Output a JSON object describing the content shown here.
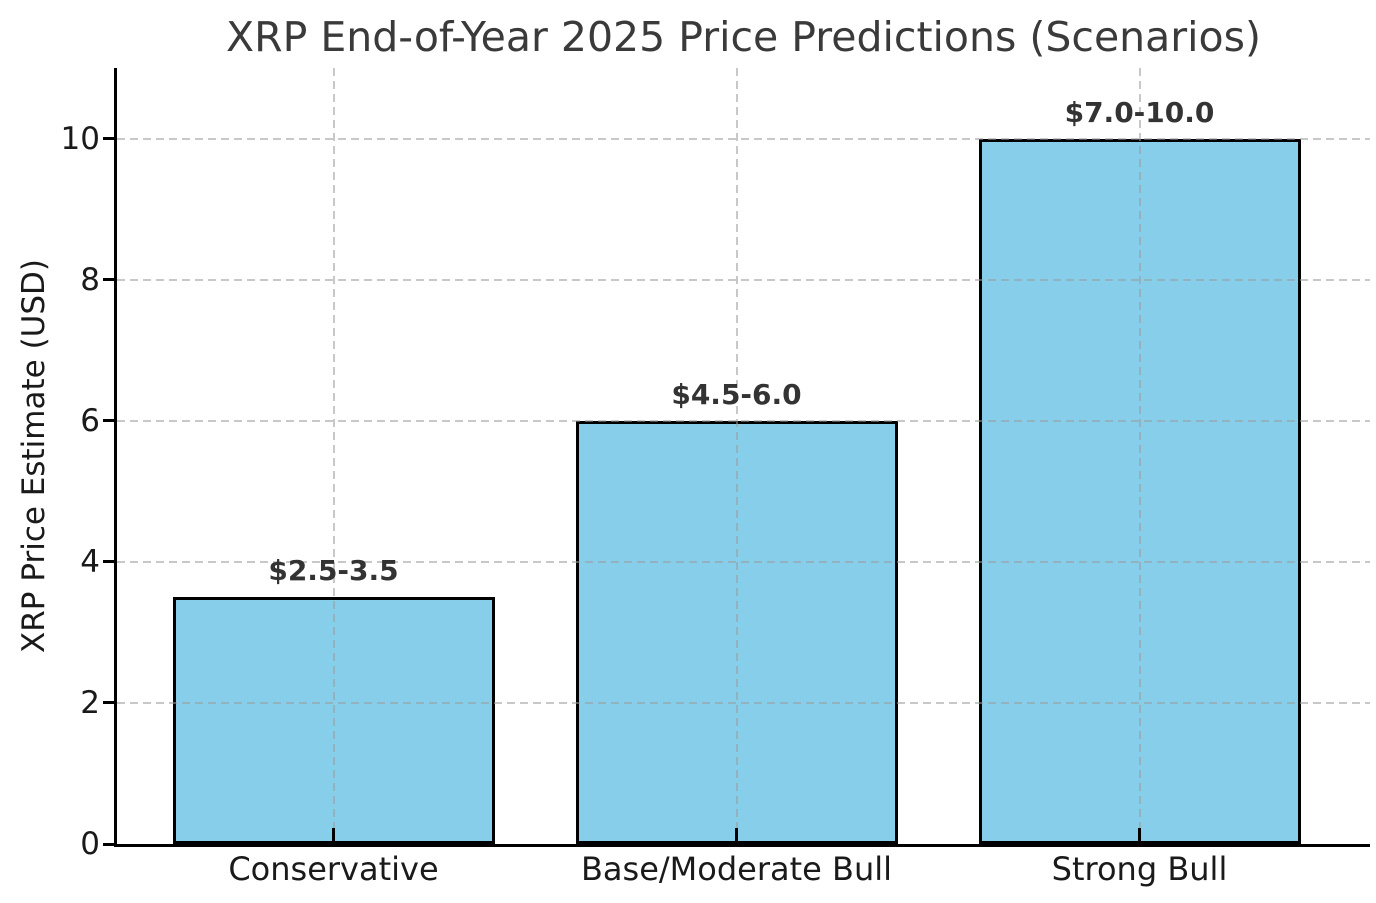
{
  "figure": {
    "background": "#ffffff"
  },
  "chart_data": {
    "type": "bar",
    "title": "XRP End-of-Year 2025 Price Predictions (Scenarios)",
    "xlabel": "",
    "ylabel": "XRP Price Estimate (USD)",
    "categories": [
      "Conservative",
      "Base/Moderate Bull",
      "Strong Bull"
    ],
    "values": [
      3.5,
      6.0,
      10.0
    ],
    "bar_labels": [
      "$2.5-3.5",
      "$4.5-6.0",
      "$7.0-10.0"
    ],
    "yticks": [
      0,
      2,
      4,
      6,
      8,
      10
    ],
    "ylim": [
      0,
      11
    ],
    "grid": true,
    "grid_axes": "both",
    "grid_linestyle": "dashed",
    "legend_position": "none",
    "colors": {
      "bar_fill": "#87CEEB",
      "bar_edge": "#000000",
      "grid": "#9b9b9b",
      "title": "#3a3a3a",
      "tick_label": "#1a1a1a",
      "annotation": "#333333",
      "axis": "#000000",
      "background": "#ffffff"
    }
  }
}
